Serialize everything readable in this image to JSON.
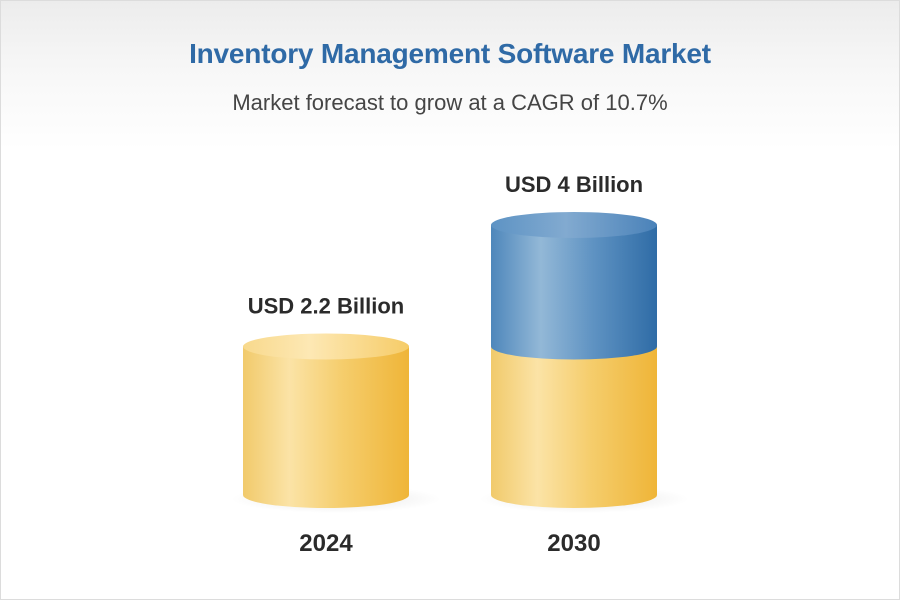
{
  "title": "Inventory Management Software Market",
  "subtitle": "Market forecast to grow at a CAGR of 10.7%",
  "colors": {
    "title": "#2f6aa6",
    "gold": "#f3c04b",
    "blue": "#3f7fb7"
  },
  "chart_data": {
    "type": "bar",
    "categories": [
      "2024",
      "2030"
    ],
    "values": [
      2.2,
      4
    ],
    "value_labels": [
      "USD 2.2 Billion",
      "USD 4 Billion"
    ],
    "unit": "USD Billion",
    "grid": false,
    "legend": "none"
  }
}
